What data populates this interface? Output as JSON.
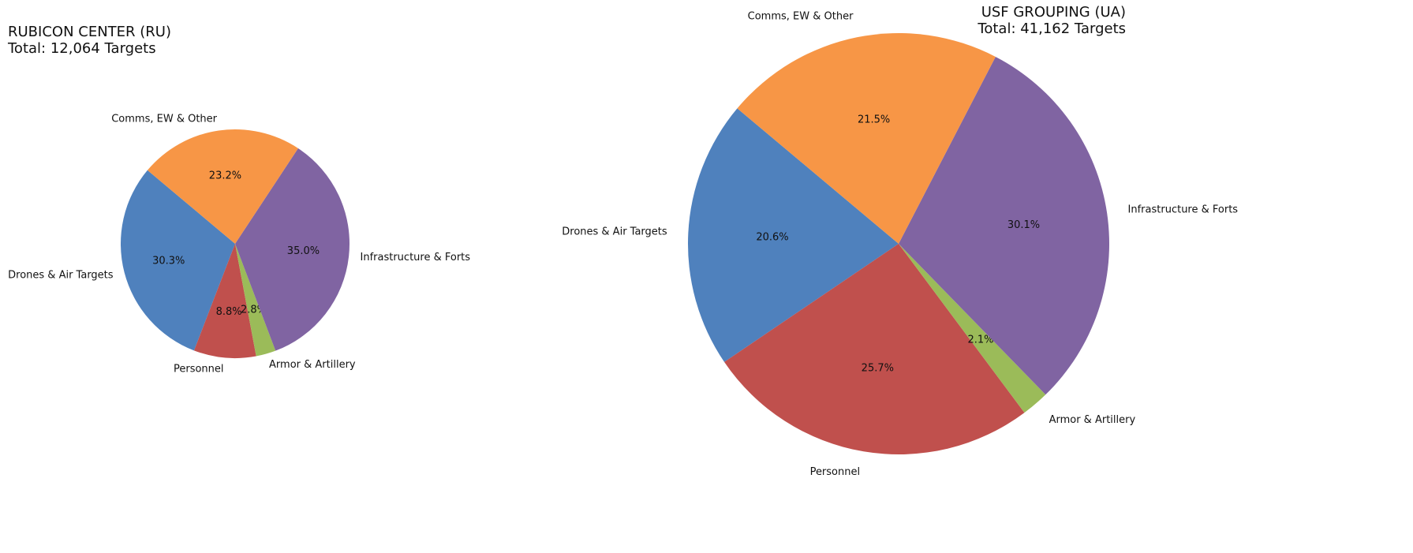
{
  "chart_data": [
    {
      "type": "pie",
      "title": "RUBICON CENTER (RU)",
      "subtitle": "Total: 12,064 Targets",
      "categories": [
        "Drones & Air Targets",
        "Personnel",
        "Armor & Artillery",
        "Infrastructure & Forts",
        "Comms, EW & Other"
      ],
      "values": [
        30.3,
        8.8,
        2.8,
        35.0,
        23.2
      ],
      "value_labels": [
        "30.3%",
        "8.8%",
        "2.8%",
        "35.0%",
        "23.2%"
      ],
      "colors": [
        "#4f81bd",
        "#c0504d",
        "#9bbb59",
        "#8064a2",
        "#f79646"
      ]
    },
    {
      "type": "pie",
      "title": "USF GROUPING (UA)",
      "subtitle": "Total: 41,162 Targets",
      "categories": [
        "Drones & Air Targets",
        "Personnel",
        "Armor & Artillery",
        "Infrastructure & Forts",
        "Comms, EW & Other"
      ],
      "values": [
        20.6,
        25.7,
        2.1,
        30.1,
        21.5
      ],
      "value_labels": [
        "20.6%",
        "25.7%",
        "2.1%",
        "30.1%",
        "21.5%"
      ],
      "colors": [
        "#4f81bd",
        "#c0504d",
        "#9bbb59",
        "#8064a2",
        "#f79646"
      ]
    }
  ]
}
